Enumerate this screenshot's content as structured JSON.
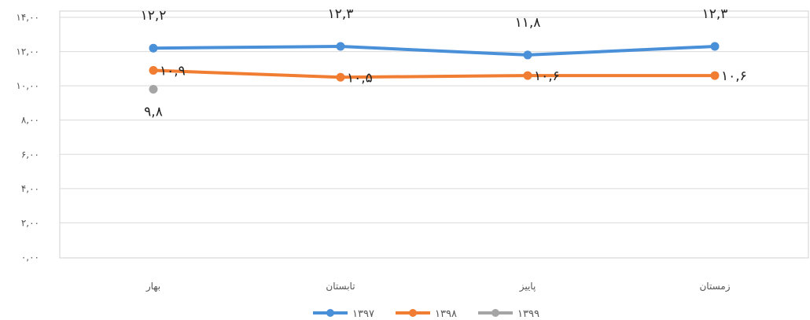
{
  "chart_data": {
    "type": "line",
    "categories": [
      "بهار",
      "تابستان",
      "پاییز",
      "زمستان"
    ],
    "y_tick_labels": [
      "۰,۰۰",
      "۲,۰۰",
      "۴,۰۰",
      "۶,۰۰",
      "۸,۰۰",
      "۱۰,۰۰",
      "۱۲,۰۰",
      "۱۴,۰۰"
    ],
    "y_ticks": [
      0,
      2,
      4,
      6,
      8,
      10,
      12,
      14
    ],
    "ylim": [
      0,
      14
    ],
    "grid": true,
    "legend_position": "bottom",
    "series": [
      {
        "name": "۱۳۹۷",
        "color": "#4a90d9",
        "values": [
          12.2,
          12.3,
          11.8,
          12.3
        ],
        "labels": [
          "۱۲,۲",
          "۱۲,۳",
          "۱۱,۸",
          "۱۲,۳"
        ]
      },
      {
        "name": "۱۳۹۸",
        "color": "#f07d32",
        "values": [
          10.9,
          10.5,
          10.6,
          10.6
        ],
        "labels": [
          "۱۰,۹",
          "۱۰,۵",
          "۱۰,۶",
          "۱۰,۶"
        ]
      },
      {
        "name": "۱۳۹۹",
        "color": "#a5a5a5",
        "values": [
          9.8,
          null,
          null,
          null
        ],
        "labels": [
          "۹,۸",
          "",
          "",
          ""
        ]
      }
    ]
  }
}
